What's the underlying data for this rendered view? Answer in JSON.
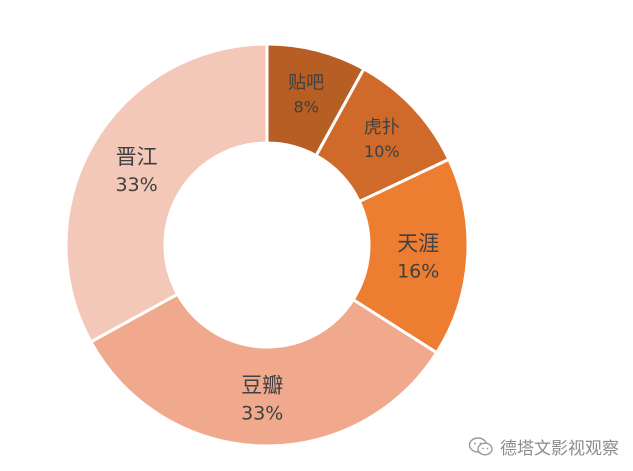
{
  "chart_data": {
    "type": "pie",
    "donut": true,
    "title": "",
    "start_angle_deg": 0,
    "direction": "clockwise",
    "slices": [
      {
        "label": "贴吧",
        "value": 8,
        "value_label": "8%",
        "color": "#b75e25"
      },
      {
        "label": "虎扑",
        "value": 10,
        "value_label": "10%",
        "color": "#cf6a2a"
      },
      {
        "label": "天涯",
        "value": 16,
        "value_label": "16%",
        "color": "#ed7d31"
      },
      {
        "label": "豆瓣",
        "value": 33,
        "value_label": "33%",
        "color": "#f1a98d"
      },
      {
        "label": "晋江",
        "value": 33,
        "value_label": "33%",
        "color": "#f4c8b9"
      }
    ]
  },
  "watermark": {
    "text": "德塔文影视观察",
    "icon": "wechat-icon"
  }
}
